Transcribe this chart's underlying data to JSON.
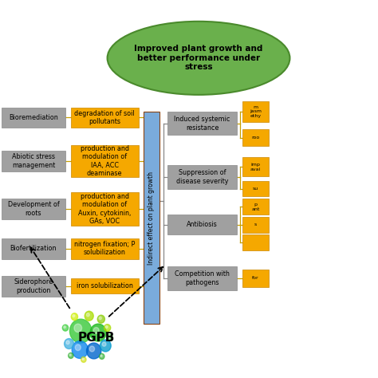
{
  "title": "Improved plant growth and\nbetter performance under\nstress",
  "ellipse_color": "#6ab04c",
  "ellipse_edge": "#4a8a2c",
  "gray_box_color": "#a0a0a0",
  "orange_box_color": "#f5a800",
  "blue_box_color": "#7aabdb",
  "background": "#ffffff",
  "left_gray_boxes": [
    "Bioremediation",
    "Abiotic stress\nmanagement",
    "Development of\nroots",
    "Biofertilization",
    "Siderophore\nproduction"
  ],
  "left_orange_boxes": [
    "degradation of soil\npollutants",
    "production and\nmodulation of\nIAA, ACC\ndeaminase",
    "production and\nmodulation of\nAuxin, cytokinin,\nGAs, VOC",
    "nitrogen fixation; P\nsolubilization",
    "iron solubilization"
  ],
  "center_blue_label": "Indirect effect on plant growth",
  "right_gray_boxes": [
    "Induced systemic\nresistance",
    "Suppression of\ndisease severity",
    "Antibiosis",
    "Competition with\npathogens"
  ],
  "pgpb_label": "PGPB",
  "line_color": "#c8a000",
  "bracket_color": "#888888"
}
